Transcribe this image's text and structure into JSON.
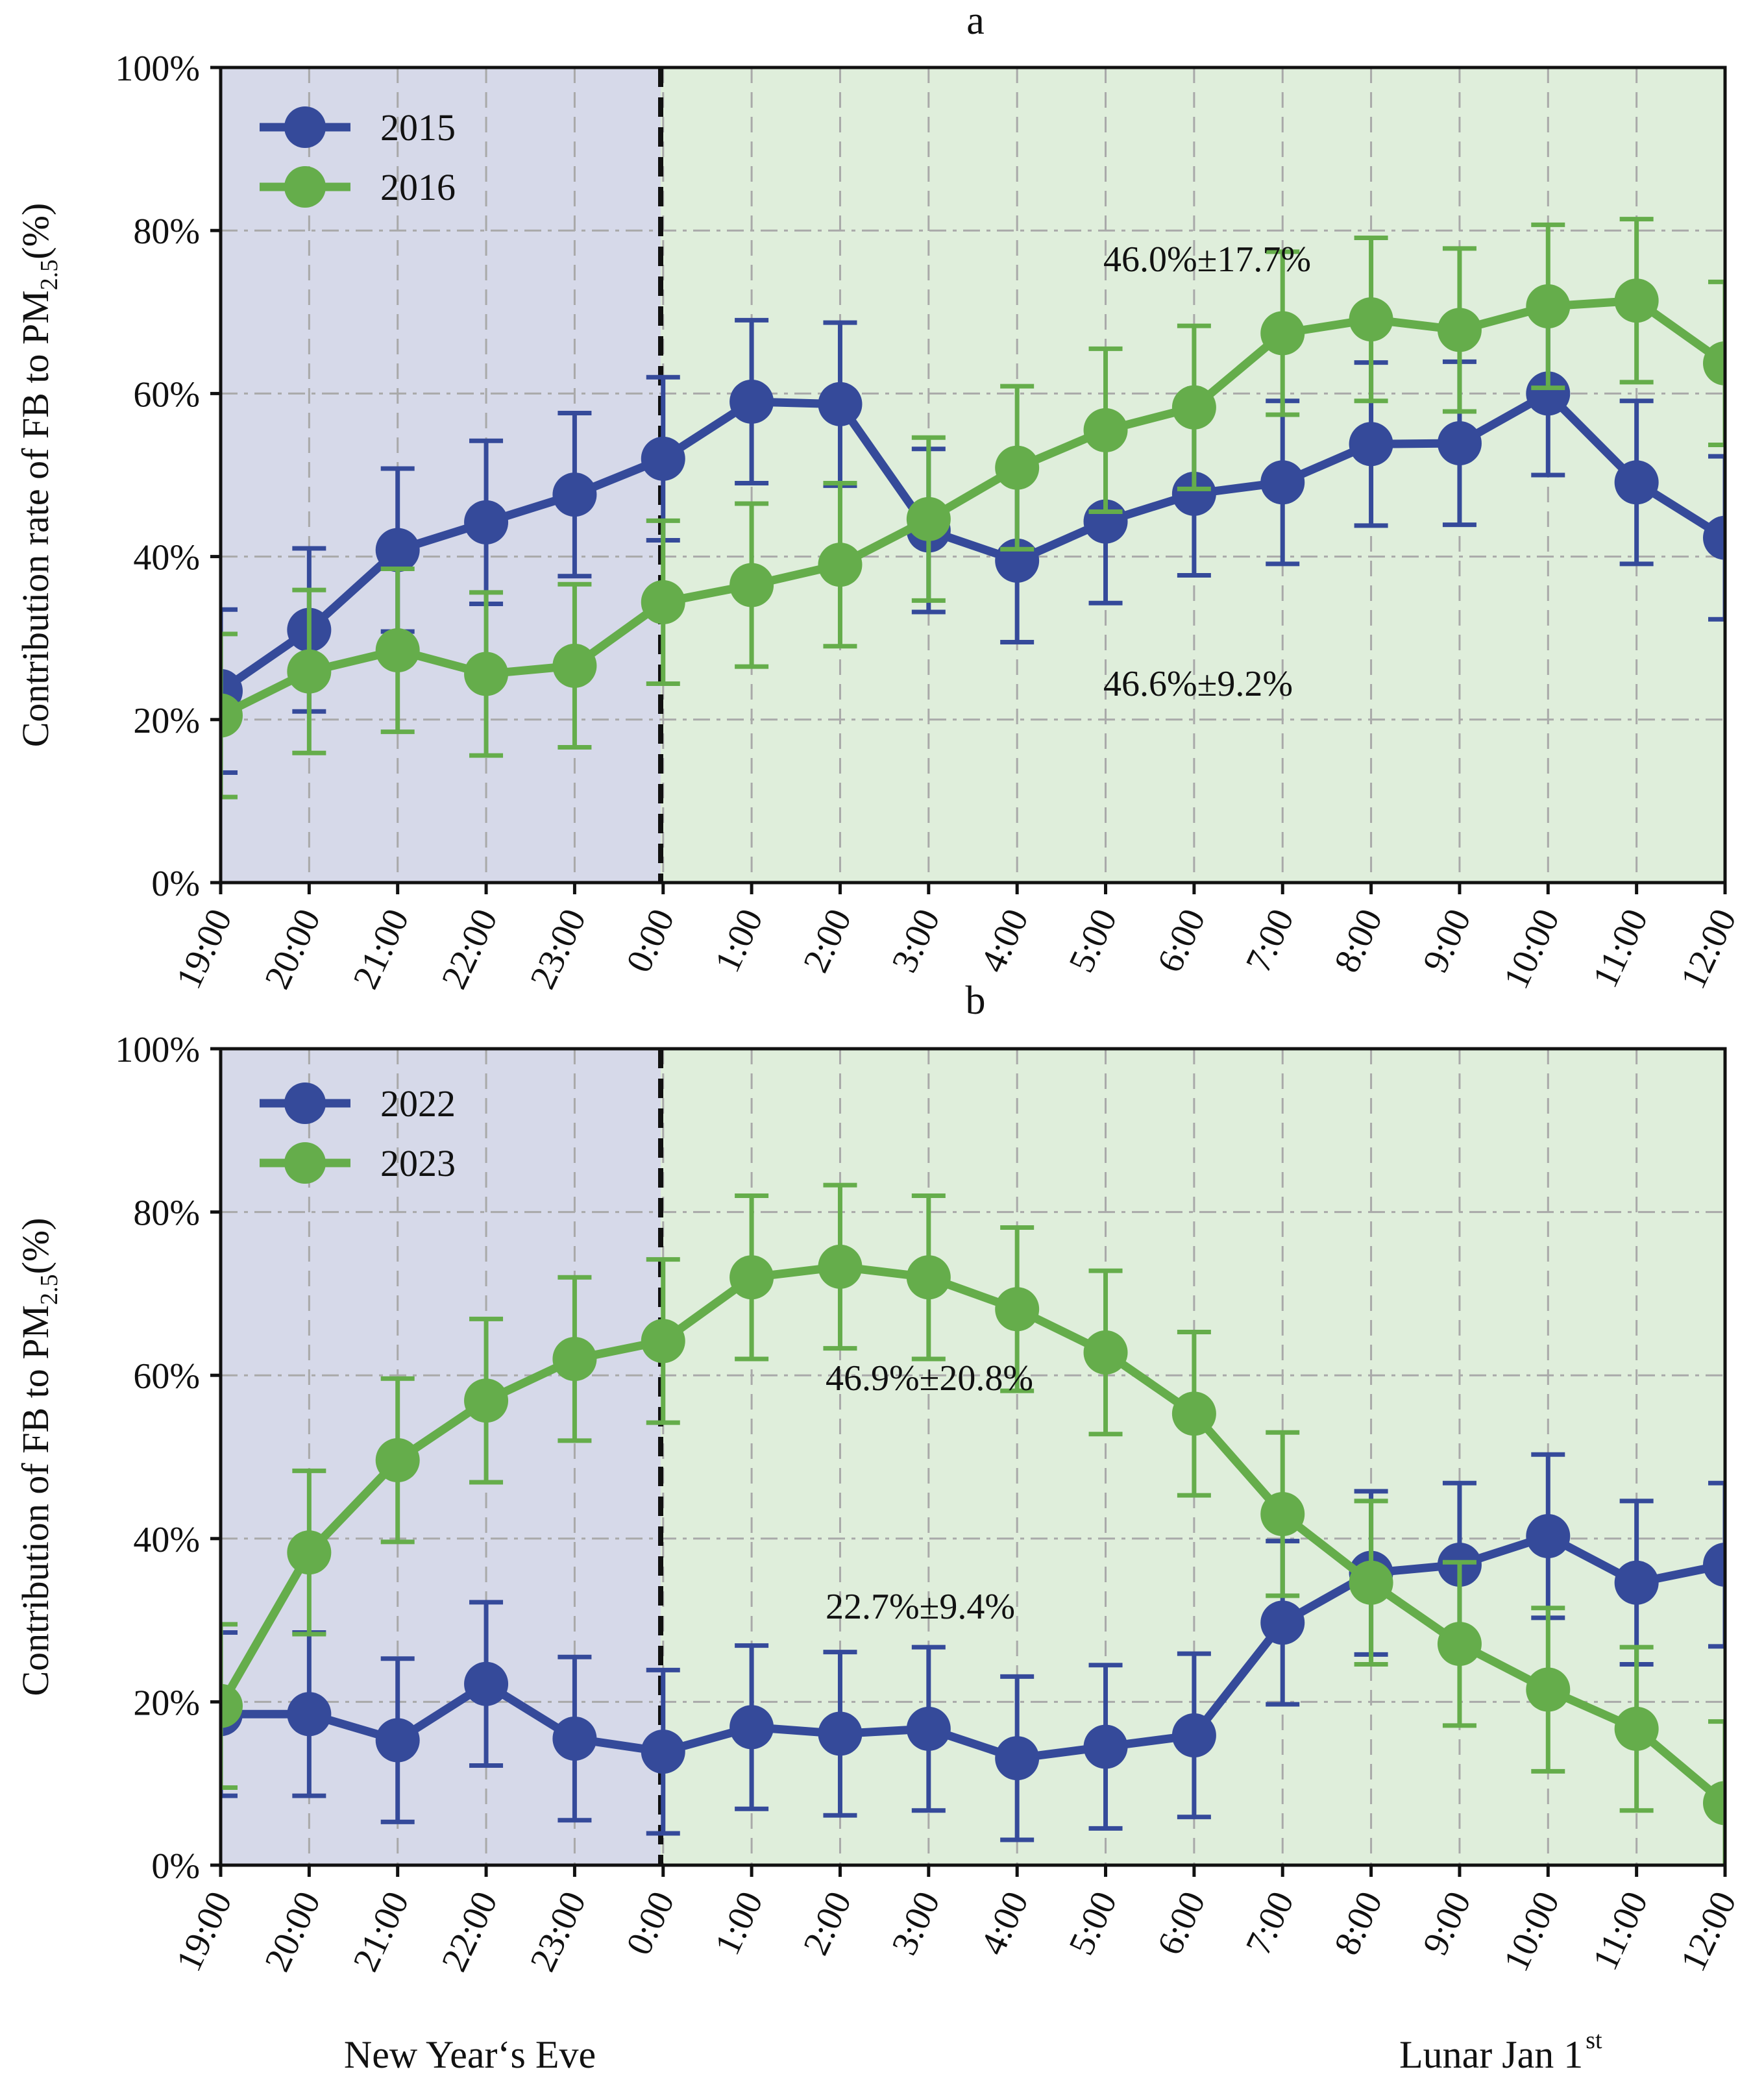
{
  "chart_data": [
    {
      "panel_label": "a",
      "type": "line",
      "ylabel": "Contribution  rate of FB to PM",
      "ylabel_sub": "2.5",
      "ylabel_suffix": "(%)",
      "yticks": [
        "0%",
        "20%",
        "40%",
        "60%",
        "80%",
        "100%"
      ],
      "ylim": [
        0,
        100
      ],
      "categories": [
        "19:00",
        "20:00",
        "21:00",
        "22:00",
        "23:00",
        "0:00",
        "1:00",
        "2:00",
        "3:00",
        "4:00",
        "5:00",
        "6:00",
        "7:00",
        "8:00",
        "9:00",
        "10:00",
        "11:00",
        "12:00"
      ],
      "series": [
        {
          "name": "2015",
          "color": "#354a9a",
          "values": [
            23.5,
            31,
            40.8,
            44.2,
            47.6,
            52,
            59,
            58.7,
            43.2,
            39.5,
            44.3,
            47.7,
            49.1,
            53.8,
            53.9,
            60,
            49.1,
            42.3
          ],
          "errors": 10
        },
        {
          "name": "2016",
          "color": "#65ad4b",
          "values": [
            20.5,
            25.9,
            28.5,
            25.6,
            26.6,
            34.4,
            36.5,
            39,
            44.6,
            50.9,
            55.5,
            58.3,
            67.4,
            69.1,
            67.8,
            70.7,
            71.4,
            63.7
          ],
          "errors": 10
        }
      ],
      "annotations": [
        "46.0%±17.7%",
        "46.6%±9.2%"
      ],
      "shading": {
        "eve_color": "#d6d9e9",
        "day_color": "#dfeedb",
        "divider_at": "0:00"
      },
      "grid": true
    },
    {
      "panel_label": "b",
      "type": "line",
      "ylabel": "Contribution of FB to PM",
      "ylabel_sub": "2.5",
      "ylabel_suffix": "(%)",
      "yticks": [
        "0%",
        "20%",
        "40%",
        "60%",
        "80%",
        "100%"
      ],
      "ylim": [
        0,
        100
      ],
      "categories": [
        "19:00",
        "20:00",
        "21:00",
        "22:00",
        "23:00",
        "0:00",
        "1:00",
        "2:00",
        "3:00",
        "4:00",
        "5:00",
        "6:00",
        "7:00",
        "8:00",
        "9:00",
        "10:00",
        "11:00",
        "12:00"
      ],
      "series": [
        {
          "name": "2022",
          "color": "#354a9a",
          "values": [
            18.5,
            18.5,
            15.3,
            22.2,
            15.5,
            13.9,
            16.9,
            16.1,
            16.7,
            13.1,
            14.5,
            15.9,
            29.7,
            35.8,
            36.8,
            40.3,
            34.6,
            36.8
          ],
          "errors": 10
        },
        {
          "name": "2023",
          "color": "#65ad4b",
          "values": [
            19.5,
            38.3,
            49.6,
            56.9,
            62,
            64.2,
            72,
            73.3,
            72,
            68.1,
            62.8,
            55.3,
            43,
            34.6,
            27.1,
            21.5,
            16.7,
            7.6
          ],
          "errors": 10
        }
      ],
      "annotations": [
        "46.9%±20.8%",
        "22.7%±9.4%"
      ],
      "shading": {
        "eve_color": "#d6d9e9",
        "day_color": "#dfeedb",
        "divider_at": "0:00"
      },
      "grid": true
    }
  ],
  "footer": {
    "left_label": "New Year‘s Eve",
    "right_label": "Lunar Jan 1",
    "right_label_sup": "st"
  }
}
